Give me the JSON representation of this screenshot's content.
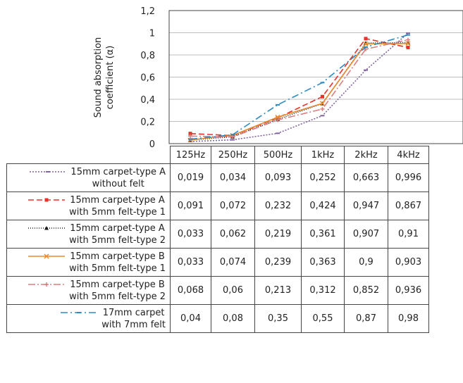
{
  "chart_data": {
    "type": "line",
    "ylabel": "Sound absorption coefficient (α)",
    "ylim": [
      0,
      1.2
    ],
    "yticks": [
      "0",
      "0,2",
      "0,4",
      "0,6",
      "0,8",
      "1",
      "1,2"
    ],
    "grid": "horizontal",
    "categories": [
      "125Hz",
      "250Hz",
      "500Hz",
      "1kHz",
      "2kHz",
      "4kHz"
    ],
    "series": [
      {
        "name_line1": "15mm carpet-type A",
        "name_line2": "without felt",
        "values": [
          0.019,
          0.034,
          0.093,
          0.252,
          0.663,
          0.996
        ],
        "labels": [
          "0,019",
          "0,034",
          "0,093",
          "0,252",
          "0,663",
          "0,996"
        ],
        "color": "#8064A2",
        "dash": "2,2",
        "marker": "dash"
      },
      {
        "name_line1": "15mm carpet-type A",
        "name_line2": "with 5mm felt-type 1",
        "values": [
          0.091,
          0.072,
          0.232,
          0.424,
          0.947,
          0.867
        ],
        "labels": [
          "0,091",
          "0,072",
          "0,232",
          "0,424",
          "0,947",
          "0,867"
        ],
        "color": "#E8312B",
        "dash": "8,4",
        "marker": "square"
      },
      {
        "name_line1": "15mm carpet-type A",
        "name_line2": "with 5mm felt-type 2",
        "values": [
          0.033,
          0.062,
          0.219,
          0.361,
          0.907,
          0.91
        ],
        "labels": [
          "0,033",
          "0,062",
          "0,219",
          "0,361",
          "0,907",
          "0,91"
        ],
        "color": "#1a1a1a",
        "dash": "1,2",
        "marker": "triangle"
      },
      {
        "name_line1": "15mm carpet-type B",
        "name_line2": "with 5mm felt-type 1",
        "values": [
          0.033,
          0.074,
          0.239,
          0.363,
          0.9,
          0.903
        ],
        "labels": [
          "0,033",
          "0,074",
          "0,239",
          "0,363",
          "0,9",
          "0,903"
        ],
        "color": "#E88A2C",
        "dash": "",
        "marker": "x"
      },
      {
        "name_line1": "15mm carpet-type B",
        "name_line2": "with 5mm felt-type 2",
        "values": [
          0.068,
          0.06,
          0.213,
          0.312,
          0.852,
          0.936
        ],
        "labels": [
          "0,068",
          "0,06",
          "0,213",
          "0,312",
          "0,852",
          "0,936"
        ],
        "color": "#D87F7F",
        "dash": "10,3,2,3",
        "marker": "plus"
      },
      {
        "name_line1": "17mm carpet",
        "name_line2": "with 7mm felt",
        "values": [
          0.04,
          0.08,
          0.35,
          0.55,
          0.87,
          0.98
        ],
        "labels": [
          "0,04",
          "0,08",
          "0,35",
          "0,55",
          "0,87",
          "0,98"
        ],
        "color": "#2E8BC0",
        "dash": "10,4,2,4",
        "marker": "dash"
      }
    ]
  }
}
